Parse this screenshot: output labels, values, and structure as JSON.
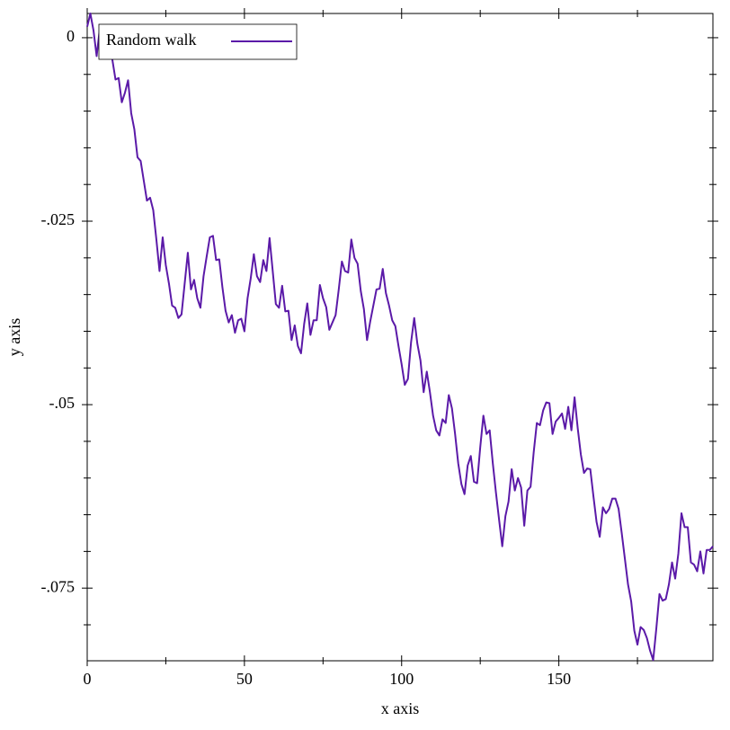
{
  "chart_data": {
    "type": "line",
    "x_label": "x axis",
    "y_label": "y axis",
    "x": [
      0,
      1,
      2,
      3,
      4,
      5,
      6,
      7,
      8,
      9,
      10,
      11,
      12,
      13,
      14,
      15,
      16,
      17,
      18,
      19,
      20,
      21,
      22,
      23,
      24,
      25,
      26,
      27,
      28,
      29,
      30,
      31,
      32,
      33,
      34,
      35,
      36,
      37,
      38,
      39,
      40,
      41,
      42,
      43,
      44,
      45,
      46,
      47,
      48,
      49,
      50,
      51,
      52,
      53,
      54,
      55,
      56,
      57,
      58,
      59,
      60,
      61,
      62,
      63,
      64,
      65,
      66,
      67,
      68,
      69,
      70,
      71,
      72,
      73,
      74,
      75,
      76,
      77,
      78,
      79,
      80,
      81,
      82,
      83,
      84,
      85,
      86,
      87,
      88,
      89,
      90,
      91,
      92,
      93,
      94,
      95,
      96,
      97,
      98,
      99,
      100,
      101,
      102,
      103,
      104,
      105,
      106,
      107,
      108,
      109,
      110,
      111,
      112,
      113,
      114,
      115,
      116,
      117,
      118,
      119,
      120,
      121,
      122,
      123,
      124,
      125,
      126,
      127,
      128,
      129,
      130,
      131,
      132,
      133,
      134,
      135,
      136,
      137,
      138,
      139,
      140,
      141,
      142,
      143,
      144,
      145,
      146,
      147,
      148,
      149,
      150,
      151,
      152,
      153,
      154,
      155,
      156,
      157,
      158,
      159,
      160,
      161,
      162,
      163,
      164,
      165,
      166,
      167,
      168,
      169,
      170,
      171,
      172,
      173,
      174,
      175,
      176,
      177,
      178,
      179,
      180,
      181,
      182,
      183,
      184,
      185,
      186,
      187,
      188,
      189,
      190,
      191,
      192,
      193,
      194,
      195,
      196,
      197,
      198,
      199
    ],
    "series": [
      {
        "name": "Random walk",
        "color": "#5b1aa8",
        "values": [
          0.0015,
          0.0033,
          0.001,
          -0.0025,
          0.0012,
          0.0005,
          -0.002,
          0.0003,
          -0.003,
          -0.0057,
          -0.0055,
          -0.0088,
          -0.0075,
          -0.0058,
          -0.0103,
          -0.0125,
          -0.0163,
          -0.0168,
          -0.0195,
          -0.0222,
          -0.0218,
          -0.0235,
          -0.0275,
          -0.0318,
          -0.0272,
          -0.031,
          -0.0335,
          -0.0365,
          -0.0368,
          -0.0382,
          -0.0377,
          -0.0335,
          -0.0293,
          -0.0343,
          -0.033,
          -0.0355,
          -0.0368,
          -0.0325,
          -0.0298,
          -0.0272,
          -0.027,
          -0.0303,
          -0.0302,
          -0.034,
          -0.0372,
          -0.0388,
          -0.0378,
          -0.0402,
          -0.0385,
          -0.0383,
          -0.04,
          -0.0355,
          -0.0328,
          -0.0295,
          -0.0325,
          -0.0333,
          -0.0303,
          -0.0318,
          -0.0273,
          -0.0318,
          -0.0363,
          -0.0368,
          -0.0338,
          -0.0373,
          -0.0372,
          -0.0412,
          -0.0392,
          -0.042,
          -0.043,
          -0.039,
          -0.0362,
          -0.0405,
          -0.0385,
          -0.0385,
          -0.0337,
          -0.0355,
          -0.0367,
          -0.0398,
          -0.0388,
          -0.0378,
          -0.0343,
          -0.0305,
          -0.0318,
          -0.032,
          -0.0275,
          -0.03,
          -0.0308,
          -0.0345,
          -0.037,
          -0.0412,
          -0.0387,
          -0.0365,
          -0.0343,
          -0.0342,
          -0.0315,
          -0.0348,
          -0.0365,
          -0.0385,
          -0.0393,
          -0.042,
          -0.0445,
          -0.0473,
          -0.0465,
          -0.0415,
          -0.0382,
          -0.0417,
          -0.044,
          -0.0483,
          -0.0455,
          -0.0483,
          -0.0515,
          -0.0535,
          -0.0542,
          -0.052,
          -0.0525,
          -0.0487,
          -0.0505,
          -0.054,
          -0.058,
          -0.0608,
          -0.0622,
          -0.0583,
          -0.057,
          -0.0605,
          -0.0607,
          -0.0558,
          -0.0515,
          -0.054,
          -0.0535,
          -0.058,
          -0.062,
          -0.0657,
          -0.0693,
          -0.0652,
          -0.0632,
          -0.0588,
          -0.0617,
          -0.06,
          -0.0613,
          -0.0665,
          -0.0617,
          -0.0612,
          -0.0565,
          -0.0525,
          -0.0528,
          -0.0508,
          -0.0497,
          -0.0498,
          -0.054,
          -0.0523,
          -0.0518,
          -0.0512,
          -0.0533,
          -0.0503,
          -0.0535,
          -0.049,
          -0.0532,
          -0.0568,
          -0.0593,
          -0.0587,
          -0.0588,
          -0.0625,
          -0.066,
          -0.068,
          -0.064,
          -0.0648,
          -0.0642,
          -0.0628,
          -0.0628,
          -0.0642,
          -0.0675,
          -0.071,
          -0.0745,
          -0.0768,
          -0.0808,
          -0.0827,
          -0.0803,
          -0.0807,
          -0.0818,
          -0.0835,
          -0.0848,
          -0.0805,
          -0.0758,
          -0.0767,
          -0.0765,
          -0.0745,
          -0.0715,
          -0.0737,
          -0.0703,
          -0.0648,
          -0.0667,
          -0.0667,
          -0.0715,
          -0.0718,
          -0.0727,
          -0.07,
          -0.073,
          -0.0698,
          -0.0698,
          -0.0693
        ]
      }
    ],
    "xlim": [
      0,
      199
    ],
    "ylim": [
      -0.0849,
      0.0033
    ],
    "xticks": [
      0,
      50,
      100,
      150
    ],
    "xminorticks": [
      25,
      75,
      125,
      175
    ],
    "yticks": [
      0,
      {
        "value": -0.025,
        "label": "-.025"
      },
      {
        "value": -0.05,
        "label": "-.05"
      },
      {
        "value": -0.075,
        "label": "-.075"
      }
    ],
    "yminorticks": [
      -0.005,
      -0.01,
      -0.015,
      -0.02,
      -0.03,
      -0.035,
      -0.04,
      -0.045,
      -0.055,
      -0.06,
      -0.065,
      -0.07,
      -0.08
    ],
    "legend": "top-left"
  }
}
